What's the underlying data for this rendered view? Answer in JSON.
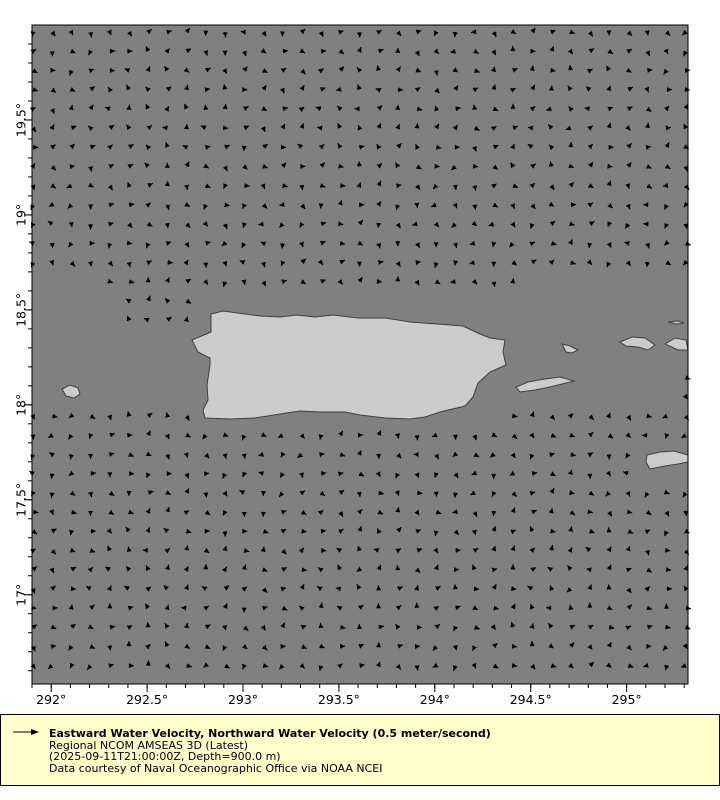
{
  "chart_data": {
    "type": "vector",
    "title": "Eastward Water Velocity, Northward Water Velocity (0.5 meter/second)",
    "xlim": [
      291.9,
      295.32
    ],
    "ylim": [
      16.53,
      20.0
    ],
    "x_ticks": [
      "292°",
      "292.5°",
      "293°",
      "293.5°",
      "294°",
      "294.5°",
      "295°"
    ],
    "x_tick_values": [
      292,
      292.5,
      293,
      293.5,
      294,
      294.5,
      295
    ],
    "y_ticks": [
      "17°",
      "17.5°",
      "18°",
      "18.5°",
      "19°",
      "19.5°"
    ],
    "y_tick_values": [
      17,
      17.5,
      18,
      18.5,
      19,
      19.5
    ],
    "grid": false,
    "legend_placement": "bottom",
    "colors": {
      "ocean": "#808080",
      "land": "#cccccc",
      "coast": "#404040",
      "arrows": "#000000",
      "legend_bg": "#ffffcc"
    }
  },
  "legend": {
    "title": "Eastward Water Velocity, Northward Water Velocity (0.5 meter/second)",
    "line1": "Regional NCOM AMSEAS 3D (Latest)",
    "line2": "(2025-09-11T21:00:00Z, Depth=900.0 m)",
    "line3": "Data courtesy of Naval Oceanographic Office via NOAA NCEI"
  }
}
